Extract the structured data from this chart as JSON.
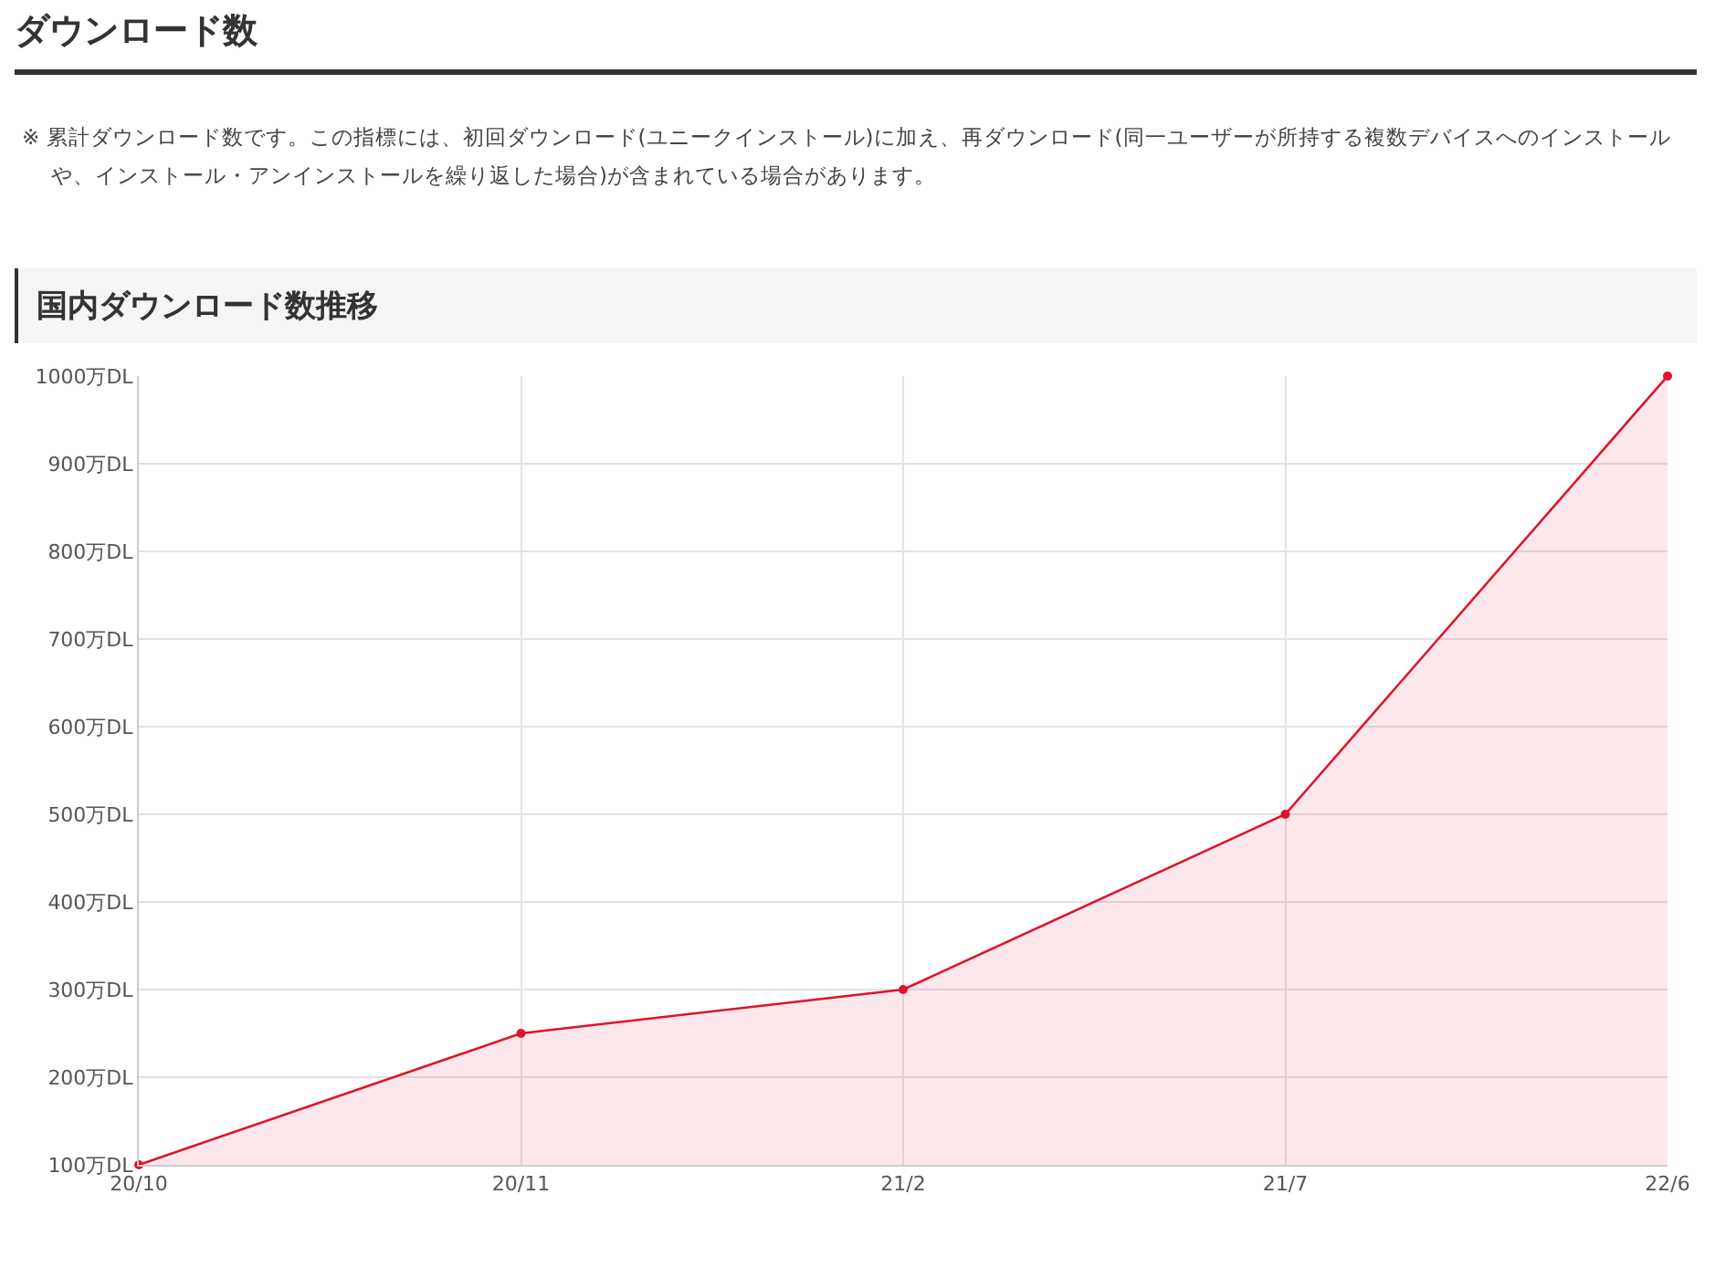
{
  "chart_data": {
    "type": "area",
    "title": "ダウンロード数",
    "subtitle": "国内ダウンロード数推移",
    "annotations": [
      "※ 累計ダウンロード数です。この指標には、初回ダウンロード(ユニークインストール)に加え、再ダウンロード(同一ユーザーが所持する複数デバイスへのインストールや、インストール・アンインストールを繰り返した場合)が含まれている場合があります。"
    ],
    "categories": [
      "20/10",
      "20/11",
      "21/2",
      "21/7",
      "22/6"
    ],
    "series": [
      {
        "color": "#e0132d",
        "values": [
          100,
          250,
          300,
          500,
          1000
        ]
      }
    ],
    "ylim": [
      100,
      1000
    ],
    "yticks": [
      {
        "value": 100,
        "label": "100万DL"
      },
      {
        "value": 200,
        "label": "200万DL"
      },
      {
        "value": 300,
        "label": "300万DL"
      },
      {
        "value": 400,
        "label": "400万DL"
      },
      {
        "value": 500,
        "label": "500万DL"
      },
      {
        "value": 600,
        "label": "600万DL"
      },
      {
        "value": 700,
        "label": "700万DL"
      },
      {
        "value": 800,
        "label": "800万DL"
      },
      {
        "value": 900,
        "label": "900万DL"
      },
      {
        "value": 1000,
        "label": "1000万DL"
      }
    ],
    "grid": true,
    "marker": "circle",
    "line_style": "solid"
  }
}
